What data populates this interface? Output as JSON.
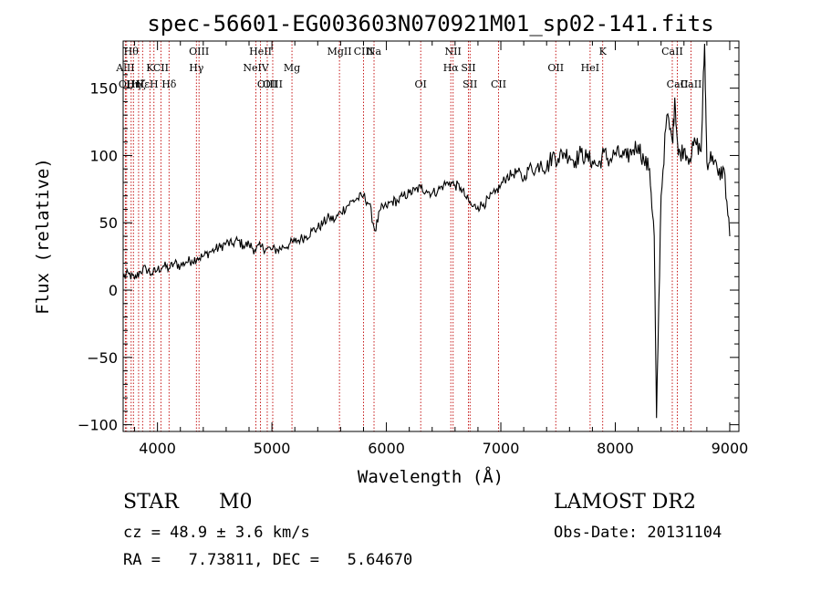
{
  "chart_data": {
    "type": "line",
    "title": "spec-56601-EG003603N070921M01_sp02-141.fits",
    "xlabel": "Wavelength (Å)",
    "ylabel": "Flux (relative)",
    "xlim": [
      3700,
      9080
    ],
    "ylim": [
      -105,
      185
    ],
    "xticks": [
      4000,
      5000,
      6000,
      7000,
      8000,
      9000
    ],
    "yticks": [
      -100,
      -50,
      0,
      50,
      100,
      150
    ],
    "grid": false,
    "series": [
      {
        "x": [
          3700,
          3750,
          3800,
          3850,
          3900,
          3950,
          4000,
          4050,
          4100,
          4150,
          4200,
          4250,
          4300,
          4350,
          4400,
          4450,
          4500,
          4550,
          4600,
          4650,
          4700,
          4750,
          4800,
          4850,
          4900,
          4950,
          5000,
          5050,
          5100,
          5150,
          5200,
          5250,
          5300,
          5350,
          5400,
          5450,
          5500,
          5550,
          5600,
          5650,
          5700,
          5750,
          5800,
          5850,
          5900,
          5950,
          6000,
          6050,
          6100,
          6150,
          6200,
          6250,
          6300,
          6350,
          6400,
          6450,
          6500,
          6550,
          6600,
          6650,
          6700,
          6750,
          6800,
          6850,
          6900,
          6950,
          7000,
          7050,
          7100,
          7150,
          7200,
          7250,
          7300,
          7350,
          7400,
          7450,
          7500,
          7550,
          7600,
          7650,
          7700,
          7750,
          7800,
          7850,
          7900,
          7950,
          8000,
          8050,
          8100,
          8150,
          8200,
          8250,
          8300,
          8340,
          8360,
          8400,
          8450,
          8500,
          8520,
          8550,
          8600,
          8650,
          8700,
          8750,
          8780,
          8800,
          8850,
          8900,
          8950,
          9000
        ],
        "y": [
          10,
          12,
          8,
          14,
          16,
          12,
          15,
          18,
          16,
          20,
          18,
          21,
          22,
          24,
          25,
          28,
          30,
          32,
          35,
          34,
          37,
          33,
          34,
          30,
          32,
          31,
          30,
          30,
          32,
          34,
          36,
          38,
          40,
          44,
          46,
          50,
          54,
          52,
          58,
          62,
          66,
          68,
          70,
          64,
          44,
          60,
          62,
          66,
          66,
          70,
          72,
          74,
          76,
          74,
          72,
          74,
          78,
          80,
          78,
          76,
          68,
          62,
          62,
          64,
          68,
          72,
          78,
          84,
          86,
          88,
          82,
          92,
          88,
          96,
          90,
          100,
          98,
          102,
          100,
          96,
          102,
          98,
          96,
          92,
          102,
          96,
          102,
          100,
          98,
          104,
          108,
          96,
          90,
          40,
          -95,
          70,
          130,
          110,
          143,
          100,
          105,
          98,
          110,
          103,
          183,
          95,
          100,
          85,
          90,
          40
        ]
      }
    ],
    "lines": [
      {
        "x": 3720,
        "label": "AlII",
        "row": 2
      },
      {
        "x": 3730,
        "label": "OII",
        "row": 3
      },
      {
        "x": 3770,
        "label": "Hθ",
        "row": 1
      },
      {
        "x": 3790,
        "label": "Hη",
        "row": 3
      },
      {
        "x": 3835,
        "label": "Hζ",
        "row": 3
      },
      {
        "x": 3870,
        "label": "Hε",
        "row": 3
      },
      {
        "x": 3934,
        "label": "K",
        "row": 2
      },
      {
        "x": 3969,
        "label": "H",
        "row": 3
      },
      {
        "x": 4030,
        "label": "CII",
        "row": 2
      },
      {
        "x": 4101,
        "label": "Hδ",
        "row": 3
      },
      {
        "x": 4340,
        "label": "Hγ",
        "row": 2
      },
      {
        "x": 4363,
        "label": "OIII",
        "row": 1
      },
      {
        "x": 4860,
        "label": "NeIV",
        "row": 2
      },
      {
        "x": 4900,
        "label": "HeII",
        "row": 1
      },
      {
        "x": 4959,
        "label": "OIII",
        "row": 3
      },
      {
        "x": 5007,
        "label": "OIII",
        "row": 3
      },
      {
        "x": 5175,
        "label": "Mg",
        "row": 2
      },
      {
        "x": 5590,
        "label": "MgII",
        "row": 1
      },
      {
        "x": 5800,
        "label": "CIII",
        "row": 1
      },
      {
        "x": 5892,
        "label": "Na",
        "row": 1
      },
      {
        "x": 6300,
        "label": "OI",
        "row": 3
      },
      {
        "x": 6563,
        "label": "Hα",
        "row": 2
      },
      {
        "x": 6583,
        "label": "NII",
        "row": 1
      },
      {
        "x": 6717,
        "label": "SII",
        "row": 2
      },
      {
        "x": 6731,
        "label": "SII",
        "row": 3
      },
      {
        "x": 6980,
        "label": "CII",
        "row": 3
      },
      {
        "x": 7480,
        "label": "OII",
        "row": 2
      },
      {
        "x": 7780,
        "label": "HeI",
        "row": 2
      },
      {
        "x": 7890,
        "label": "K",
        "row": 1
      },
      {
        "x": 8498,
        "label": "CaII",
        "row": 1
      },
      {
        "x": 8542,
        "label": "CaII",
        "row": 3
      },
      {
        "x": 8662,
        "label": "CaII",
        "row": 3
      }
    ]
  },
  "info": {
    "class": "STAR",
    "subclass": "M0",
    "survey": "LAMOST DR2",
    "cz": "cz = 48.9 ± 3.6 km/s",
    "obs_date": "Obs-Date: 20131104",
    "coords": "RA =   7.73811, DEC =   5.64670"
  },
  "colors": {
    "spectrum": "#000000",
    "line_marker": "#c00000"
  }
}
